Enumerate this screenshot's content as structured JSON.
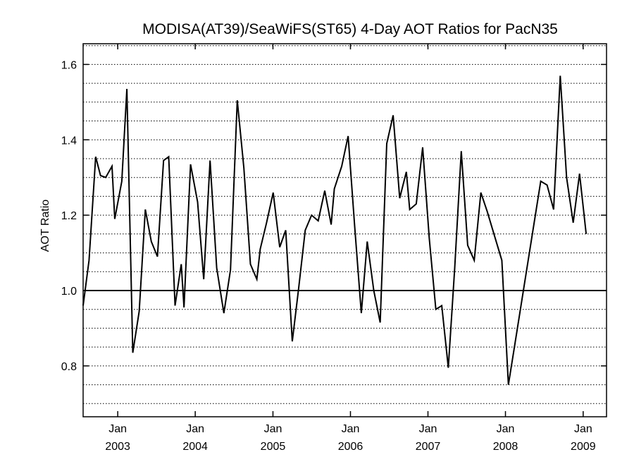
{
  "chart_data": {
    "type": "line",
    "title": "MODISA(AT39)/SeaWiFS(ST65) 4-Day AOT Ratios for PacN35",
    "ylabel": "AOT Ratio",
    "xlabel": "",
    "xlim": [
      "2002-07-22",
      "2009-04-21"
    ],
    "ylim": [
      0.665,
      1.655
    ],
    "yticks": [
      0.8,
      1.0,
      1.2,
      1.4,
      1.6
    ],
    "ytick_labels": [
      "0.8",
      "1.0",
      "1.2",
      "1.4",
      "1.6"
    ],
    "minor_gridlines_y": [
      0.7,
      0.75,
      0.8,
      0.85,
      0.9,
      0.95,
      1.05,
      1.1,
      1.15,
      1.2,
      1.25,
      1.3,
      1.35,
      1.4,
      1.45,
      1.5,
      1.55,
      1.6,
      1.65
    ],
    "reference_line_y": 1.0,
    "grid": "dotted horizontal",
    "xtick_labels": [
      {
        "date": "2003-01-01",
        "month": "Jan",
        "year": "2003"
      },
      {
        "date": "2004-01-01",
        "month": "Jan",
        "year": "2004"
      },
      {
        "date": "2005-01-01",
        "month": "Jan",
        "year": "2005"
      },
      {
        "date": "2006-01-01",
        "month": "Jan",
        "year": "2006"
      },
      {
        "date": "2007-01-01",
        "month": "Jan",
        "year": "2007"
      },
      {
        "date": "2008-01-01",
        "month": "Jan",
        "year": "2008"
      },
      {
        "date": "2009-01-01",
        "month": "Jan",
        "year": "2009"
      }
    ],
    "series": [
      {
        "color": "#000000",
        "points": [
          [
            "2002-07-22",
            0.96
          ],
          [
            "2002-08-19",
            1.08
          ],
          [
            "2002-09-19",
            1.355
          ],
          [
            "2002-10-12",
            1.305
          ],
          [
            "2002-11-05",
            1.3
          ],
          [
            "2002-12-05",
            1.33
          ],
          [
            "2002-12-18",
            1.19
          ],
          [
            "2003-01-20",
            1.29
          ],
          [
            "2003-02-13",
            1.535
          ],
          [
            "2003-03-13",
            0.835
          ],
          [
            "2003-04-12",
            0.945
          ],
          [
            "2003-05-11",
            1.215
          ],
          [
            "2003-06-08",
            1.13
          ],
          [
            "2003-07-07",
            1.09
          ],
          [
            "2003-08-05",
            1.345
          ],
          [
            "2003-08-29",
            1.355
          ],
          [
            "2003-09-28",
            0.96
          ],
          [
            "2003-10-27",
            1.07
          ],
          [
            "2003-11-09",
            0.955
          ],
          [
            "2003-12-10",
            1.335
          ],
          [
            "2004-01-12",
            1.235
          ],
          [
            "2004-02-10",
            1.03
          ],
          [
            "2004-03-11",
            1.345
          ],
          [
            "2004-04-11",
            1.06
          ],
          [
            "2004-05-15",
            0.94
          ],
          [
            "2004-06-15",
            1.055
          ],
          [
            "2004-07-17",
            1.505
          ],
          [
            "2004-08-17",
            1.325
          ],
          [
            "2004-09-17",
            1.07
          ],
          [
            "2004-10-17",
            1.03
          ],
          [
            "2004-11-02",
            1.11
          ],
          [
            "2004-12-02",
            1.18
          ],
          [
            "2005-01-02",
            1.26
          ],
          [
            "2005-02-02",
            1.115
          ],
          [
            "2005-03-02",
            1.16
          ],
          [
            "2005-04-02",
            0.865
          ],
          [
            "2005-05-02",
            1.005
          ],
          [
            "2005-06-02",
            1.16
          ],
          [
            "2005-07-02",
            1.2
          ],
          [
            "2005-08-02",
            1.185
          ],
          [
            "2005-09-02",
            1.265
          ],
          [
            "2005-10-02",
            1.175
          ],
          [
            "2005-10-17",
            1.27
          ],
          [
            "2005-11-21",
            1.33
          ],
          [
            "2005-12-21",
            1.41
          ],
          [
            "2006-01-21",
            1.17
          ],
          [
            "2006-02-21",
            0.94
          ],
          [
            "2006-03-21",
            1.13
          ],
          [
            "2006-04-21",
            1.0
          ],
          [
            "2006-05-21",
            0.915
          ],
          [
            "2006-06-21",
            1.39
          ],
          [
            "2006-07-21",
            1.465
          ],
          [
            "2006-08-21",
            1.245
          ],
          [
            "2006-09-21",
            1.315
          ],
          [
            "2006-10-07",
            1.215
          ],
          [
            "2006-11-07",
            1.23
          ],
          [
            "2006-12-07",
            1.38
          ],
          [
            "2007-01-07",
            1.14
          ],
          [
            "2007-02-07",
            0.95
          ],
          [
            "2007-03-07",
            0.96
          ],
          [
            "2007-04-07",
            0.795
          ],
          [
            "2007-05-07",
            1.06
          ],
          [
            "2007-06-07",
            1.37
          ],
          [
            "2007-07-07",
            1.12
          ],
          [
            "2007-08-07",
            1.08
          ],
          [
            "2007-09-07",
            1.26
          ],
          [
            "2007-10-07",
            1.21
          ],
          [
            "2007-12-15",
            1.08
          ],
          [
            "2008-01-15",
            0.75
          ],
          [
            "2008-02-15",
            0.86
          ],
          [
            "2008-06-15",
            1.29
          ],
          [
            "2008-07-15",
            1.28
          ],
          [
            "2008-08-15",
            1.215
          ],
          [
            "2008-09-15",
            1.57
          ],
          [
            "2008-10-15",
            1.3
          ],
          [
            "2008-11-15",
            1.18
          ],
          [
            "2008-12-15",
            1.31
          ],
          [
            "2009-01-15",
            1.15
          ]
        ]
      }
    ]
  }
}
